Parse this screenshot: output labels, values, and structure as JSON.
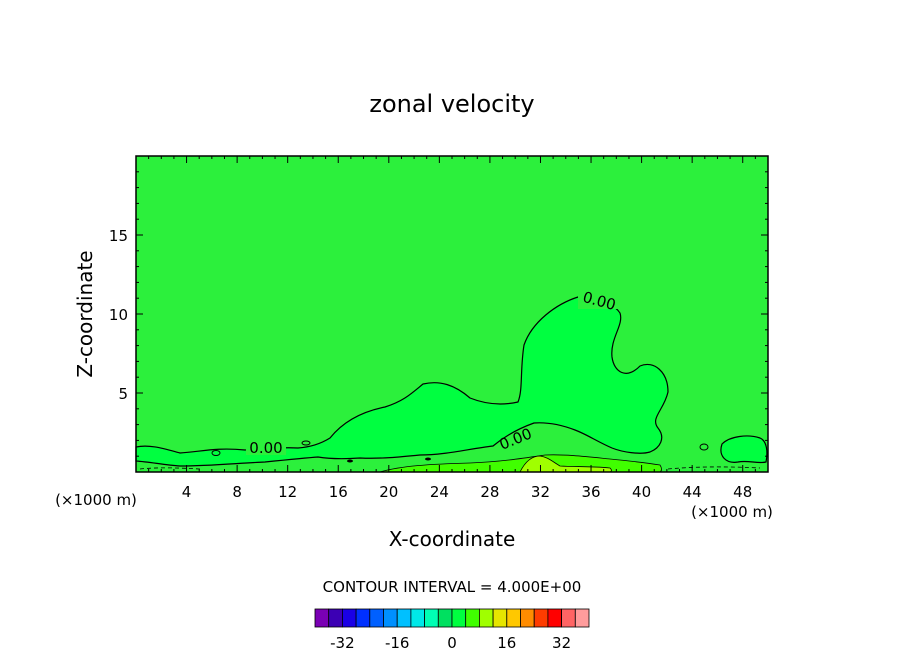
{
  "chart_data": {
    "type": "contour",
    "title": "zonal velocity",
    "xlabel": "X-coordinate",
    "ylabel": "Z-coordinate",
    "x_units": "(×1000 m)",
    "xlim": [
      0,
      50
    ],
    "ylim": [
      0,
      20
    ],
    "x_ticks": [
      4,
      8,
      12,
      16,
      20,
      24,
      28,
      32,
      36,
      40,
      44,
      48
    ],
    "y_ticks": [
      5,
      10,
      15
    ],
    "contour_labels": [
      "0.00",
      "0.00",
      "0.00"
    ],
    "contour_interval_text": "CONTOUR INTERVAL = 4.000E+00",
    "colorbar": {
      "levels": [
        -36,
        -32,
        -28,
        -24,
        -20,
        -16,
        -12,
        -8,
        -4,
        0,
        4,
        8,
        12,
        16,
        20,
        24,
        28,
        32,
        36
      ],
      "tick_labels": [
        "-32",
        "-16",
        "0",
        "16",
        "32"
      ],
      "tick_values": [
        -32,
        -16,
        0,
        16,
        32
      ],
      "colors": [
        "#7a00b4",
        "#3c00b4",
        "#1a00e6",
        "#0030ff",
        "#0060ff",
        "#0090ff",
        "#00c0ff",
        "#00e8e8",
        "#00ffb4",
        "#00e060",
        "#00ff40",
        "#40ff00",
        "#a0ff00",
        "#e6e600",
        "#ffc800",
        "#ff8c00",
        "#ff3c00",
        "#ff0000",
        "#ff6464",
        "#ff9c9c"
      ]
    },
    "field_colors": {
      "background": "#2cf03c",
      "weak_positive": "#00ff40",
      "near_surface": "#40ff00",
      "surface_band": "#a0ff00"
    }
  }
}
